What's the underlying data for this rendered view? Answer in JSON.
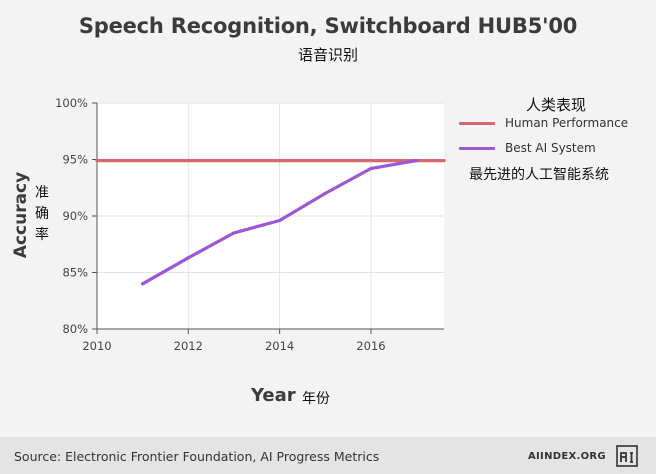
{
  "title": "Speech Recognition, Switchboard HUB5'00",
  "subtitle_cn": "语音识别",
  "legend": {
    "title_cn": "人类表现",
    "note_cn": "最先进的人工智能系统"
  },
  "axis": {
    "ylabel": "Accuracy",
    "ylabel_cn": "准确率",
    "xlabel": "Year",
    "xlabel_cn": "年份"
  },
  "footer": {
    "source": "Source: Electronic Frontier Foundation, AI Progress Metrics",
    "brand": "AIINDEX.ORG",
    "brand_icon": "ai-index-logo-icon"
  },
  "colors": {
    "human": "#d6676a",
    "ai": "#9b57d6",
    "grid": "#e3e3e3",
    "axis": "#555555"
  },
  "chart_data": {
    "type": "line",
    "title": "Speech Recognition, Switchboard HUB5'00",
    "xlabel": "Year",
    "ylabel": "Accuracy",
    "xlim": [
      2010,
      2017.6
    ],
    "ylim": [
      80,
      100
    ],
    "x_ticks": [
      2010,
      2012,
      2014,
      2016
    ],
    "x_tick_labels": [
      "2010",
      "2012",
      "2014",
      "2016"
    ],
    "y_ticks": [
      80,
      85,
      90,
      95,
      100
    ],
    "y_tick_labels": [
      "80%",
      "85%",
      "90%",
      "95%",
      "100%"
    ],
    "grid": true,
    "legend_position": "right",
    "series": [
      {
        "name": "Human Performance",
        "color": "#d6676a",
        "x": [
          2010,
          2017.6
        ],
        "values": [
          94.9,
          94.9
        ]
      },
      {
        "name": "Best AI System",
        "color": "#9b57d6",
        "x": [
          2011,
          2012,
          2013,
          2014,
          2015,
          2016,
          2017
        ],
        "values": [
          84.0,
          86.3,
          88.5,
          89.6,
          92.0,
          94.2,
          94.9
        ]
      }
    ]
  }
}
